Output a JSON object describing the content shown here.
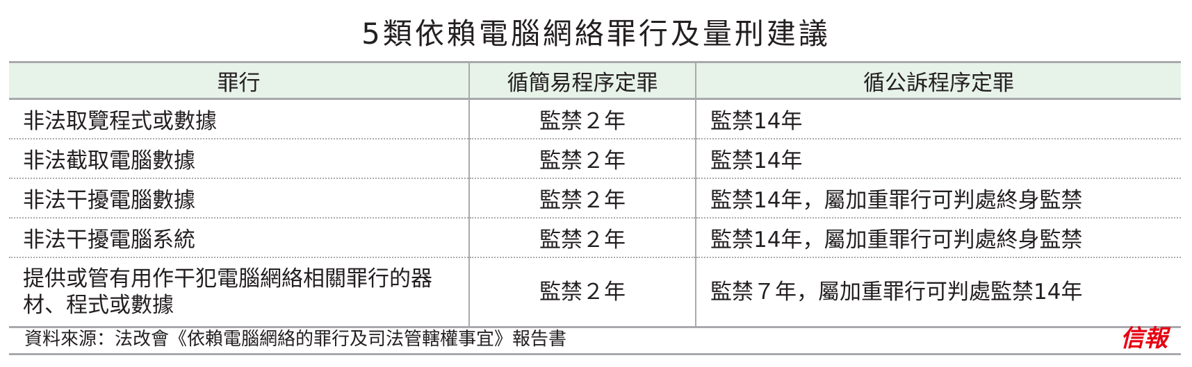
{
  "title": "5類依賴電腦網絡罪行及量刑建議",
  "table": {
    "headers": [
      "罪行",
      "循簡易程序定罪",
      "循公訴程序定罪"
    ],
    "rows": [
      {
        "offence": "非法取覽程式或數據",
        "summary": "監禁２年",
        "indictment": "監禁14年"
      },
      {
        "offence": "非法截取電腦數據",
        "summary": "監禁２年",
        "indictment": "監禁14年"
      },
      {
        "offence": "非法干擾電腦數據",
        "summary": "監禁２年",
        "indictment": "監禁14年，屬加重罪行可判處終身監禁"
      },
      {
        "offence": "非法干擾電腦系統",
        "summary": "監禁２年",
        "indictment": "監禁14年，屬加重罪行可判處終身監禁"
      },
      {
        "offence": "提供或管有用作干犯電腦網絡相關罪行的器材、程式或數據",
        "summary": "監禁２年",
        "indictment": "監禁７年，屬加重罪行可判處監禁14年"
      }
    ]
  },
  "source": "資料來源：法改會《依賴電腦網絡的罪行及司法管轄權事宜》報告書",
  "logo": "信報",
  "colors": {
    "header_bg": "#e7f2e8",
    "rule": "#a7a9ac",
    "logo": "#e60012"
  }
}
